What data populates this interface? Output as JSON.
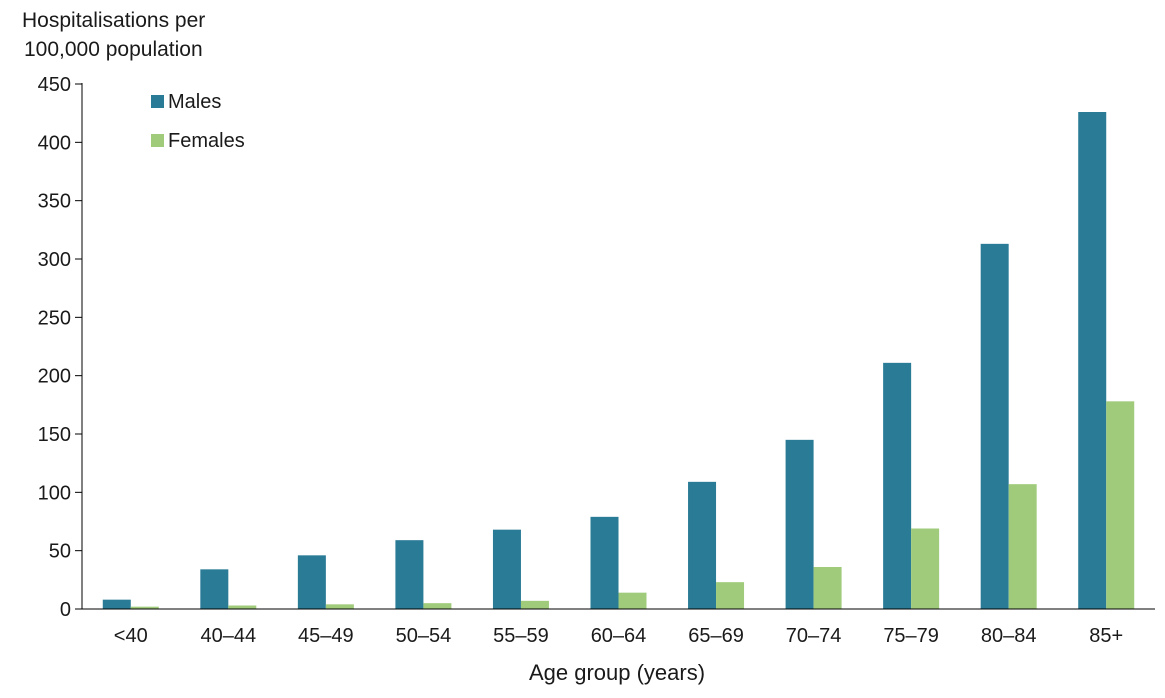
{
  "chart_data": {
    "type": "bar",
    "ylabel_lines": [
      "Hospitalisations per",
      "100,000 population"
    ],
    "xlabel": "Age group (years)",
    "ylim": [
      0,
      450
    ],
    "yticks": [
      0,
      50,
      100,
      150,
      200,
      250,
      300,
      350,
      400,
      450
    ],
    "categories": [
      "<40",
      "40–44",
      "45–49",
      "50–54",
      "55–59",
      "60–64",
      "65–69",
      "70–74",
      "75–79",
      "80–84",
      "85+"
    ],
    "series": [
      {
        "name": "Males",
        "color": "#2a7b96",
        "values": [
          8,
          34,
          46,
          59,
          68,
          79,
          109,
          145,
          211,
          313,
          426
        ]
      },
      {
        "name": "Females",
        "color": "#9fcb7b",
        "values": [
          2,
          3,
          4,
          5,
          7,
          14,
          23,
          36,
          69,
          107,
          178
        ]
      }
    ],
    "legend_position": "top-left",
    "grid": false
  }
}
